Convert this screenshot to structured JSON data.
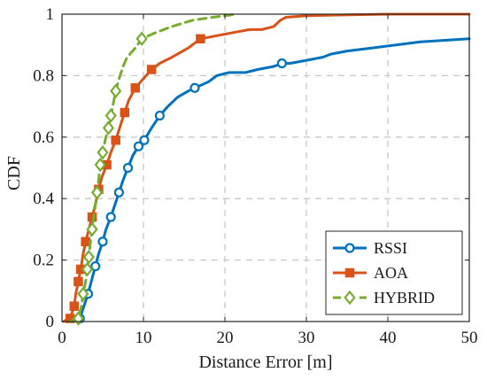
{
  "chart_data": {
    "type": "line",
    "title": "",
    "xlabel": "Distance Error [m]",
    "ylabel": "CDF",
    "xlim": [
      0,
      50
    ],
    "ylim": [
      0,
      1
    ],
    "x_ticks": [
      0,
      10,
      20,
      30,
      40,
      50
    ],
    "y_ticks": [
      0,
      0.2,
      0.4,
      0.6,
      0.8,
      1
    ],
    "x_tick_labels": [
      "0",
      "10",
      "20",
      "30",
      "40",
      "50"
    ],
    "y_tick_labels": [
      "0",
      "0.2",
      "0.4",
      "0.6",
      "0.8",
      "1"
    ],
    "grid": true,
    "legend_position": "bottom-right",
    "series": [
      {
        "name": "RSSI",
        "color": "#0072BD",
        "marker": "circle",
        "line_style": "solid",
        "points": [
          [
            1.8,
            0
          ],
          [
            2.2,
            0.01
          ],
          [
            2.7,
            0.05
          ],
          [
            3.2,
            0.09
          ],
          [
            3.6,
            0.13
          ],
          [
            4.1,
            0.18
          ],
          [
            4.5,
            0.22
          ],
          [
            5.0,
            0.26
          ],
          [
            5.4,
            0.3
          ],
          [
            6.0,
            0.34
          ],
          [
            6.5,
            0.38
          ],
          [
            7.0,
            0.42
          ],
          [
            7.5,
            0.46
          ],
          [
            8.1,
            0.5
          ],
          [
            8.7,
            0.54
          ],
          [
            9.4,
            0.57
          ],
          [
            10.1,
            0.59
          ],
          [
            11.0,
            0.63
          ],
          [
            12.0,
            0.67
          ],
          [
            13.0,
            0.7
          ],
          [
            14.2,
            0.73
          ],
          [
            15.5,
            0.75
          ],
          [
            16.3,
            0.76
          ],
          [
            18.0,
            0.78
          ],
          [
            19.0,
            0.8
          ],
          [
            20.5,
            0.81
          ],
          [
            22.5,
            0.81
          ],
          [
            24.0,
            0.82
          ],
          [
            26.0,
            0.83
          ],
          [
            27.0,
            0.84
          ],
          [
            28.0,
            0.84
          ],
          [
            30.0,
            0.85
          ],
          [
            32.0,
            0.86
          ],
          [
            33.0,
            0.87
          ],
          [
            35.0,
            0.88
          ],
          [
            38.0,
            0.89
          ],
          [
            41.0,
            0.9
          ],
          [
            44.0,
            0.91
          ],
          [
            47.0,
            0.915
          ],
          [
            50.0,
            0.92
          ]
        ],
        "marker_x": [
          2.2,
          3.2,
          4.1,
          5.0,
          6.0,
          7.0,
          8.1,
          9.4,
          10.1,
          12.0,
          16.3,
          27.0
        ]
      },
      {
        "name": "AOA",
        "color": "#D95319",
        "marker": "square",
        "line_style": "solid",
        "points": [
          [
            0.2,
            0
          ],
          [
            0.5,
            0.005
          ],
          [
            1.0,
            0.01
          ],
          [
            1.5,
            0.05
          ],
          [
            1.7,
            0.09
          ],
          [
            2.0,
            0.13
          ],
          [
            2.3,
            0.17
          ],
          [
            2.6,
            0.22
          ],
          [
            2.9,
            0.26
          ],
          [
            3.3,
            0.3
          ],
          [
            3.7,
            0.34
          ],
          [
            4.1,
            0.38
          ],
          [
            4.5,
            0.43
          ],
          [
            4.9,
            0.47
          ],
          [
            5.5,
            0.51
          ],
          [
            6.0,
            0.55
          ],
          [
            6.6,
            0.59
          ],
          [
            7.2,
            0.64
          ],
          [
            7.7,
            0.68
          ],
          [
            8.2,
            0.72
          ],
          [
            9.0,
            0.76
          ],
          [
            10.0,
            0.79
          ],
          [
            11.0,
            0.82
          ],
          [
            12.0,
            0.84
          ],
          [
            13.5,
            0.86
          ],
          [
            15.5,
            0.89
          ],
          [
            17.0,
            0.92
          ],
          [
            19.0,
            0.93
          ],
          [
            21.0,
            0.94
          ],
          [
            23.0,
            0.95
          ],
          [
            24.5,
            0.95
          ],
          [
            26.0,
            0.96
          ],
          [
            26.8,
            0.98
          ],
          [
            27.5,
            0.99
          ],
          [
            30.0,
            0.995
          ],
          [
            40.0,
            1.0
          ],
          [
            50.0,
            1.0
          ]
        ],
        "marker_x": [
          1.0,
          1.5,
          2.0,
          2.3,
          2.9,
          3.7,
          4.5,
          5.5,
          6.6,
          7.7,
          9.0,
          11.0,
          17.0
        ]
      },
      {
        "name": "HYBRID",
        "color": "#77AC30",
        "marker": "diamond",
        "line_style": "dashed",
        "points": [
          [
            1.0,
            0
          ],
          [
            1.5,
            0.005
          ],
          [
            2.0,
            0.01
          ],
          [
            2.4,
            0.05
          ],
          [
            2.6,
            0.09
          ],
          [
            2.9,
            0.13
          ],
          [
            3.1,
            0.17
          ],
          [
            3.3,
            0.21
          ],
          [
            3.5,
            0.26
          ],
          [
            3.7,
            0.3
          ],
          [
            3.9,
            0.34
          ],
          [
            4.1,
            0.38
          ],
          [
            4.3,
            0.42
          ],
          [
            4.5,
            0.46
          ],
          [
            4.7,
            0.51
          ],
          [
            5.0,
            0.55
          ],
          [
            5.3,
            0.59
          ],
          [
            5.7,
            0.63
          ],
          [
            6.0,
            0.67
          ],
          [
            6.3,
            0.71
          ],
          [
            6.6,
            0.75
          ],
          [
            7.0,
            0.79
          ],
          [
            7.5,
            0.83
          ],
          [
            8.0,
            0.86
          ],
          [
            9.0,
            0.89
          ],
          [
            9.8,
            0.92
          ],
          [
            11.5,
            0.94
          ],
          [
            13.5,
            0.96
          ],
          [
            16.0,
            0.98
          ],
          [
            18.5,
            0.99
          ],
          [
            21.5,
            1.0
          ]
        ],
        "marker_x": [
          2.0,
          2.6,
          3.1,
          3.3,
          3.7,
          4.3,
          4.7,
          5.0,
          5.7,
          6.0,
          6.6,
          9.8
        ]
      }
    ]
  }
}
